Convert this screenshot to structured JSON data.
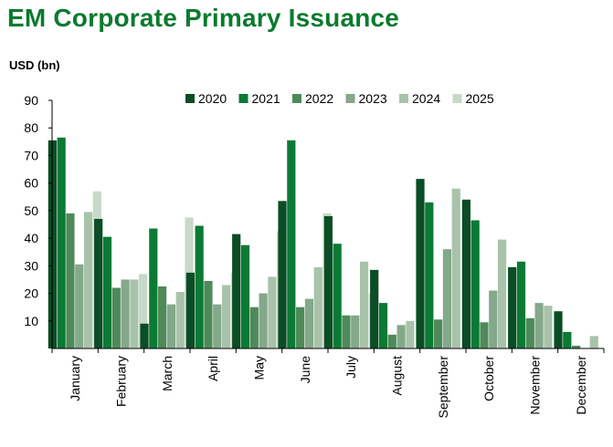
{
  "chart_data": {
    "type": "bar",
    "title": "EM Corporate Primary Issuance",
    "ylabel": "USD (bn)",
    "xlabel": "",
    "ylim": [
      0,
      90
    ],
    "yticks": [
      10,
      20,
      30,
      40,
      50,
      60,
      70,
      80,
      90
    ],
    "grid": false,
    "legend_position": "top",
    "categories": [
      "January",
      "February",
      "March",
      "April",
      "May",
      "June",
      "July",
      "August",
      "September",
      "October",
      "November",
      "December"
    ],
    "series": [
      {
        "name": "2020",
        "color": "#0b4d24",
        "values": [
          75.5,
          47,
          9,
          27.5,
          41.5,
          53.5,
          48,
          28.5,
          61.5,
          54,
          29.5,
          13.5
        ]
      },
      {
        "name": "2021",
        "color": "#0a7a34",
        "values": [
          76.5,
          40.5,
          43.5,
          44.5,
          37.5,
          75.5,
          38,
          16.5,
          53,
          46.5,
          31.5,
          6
        ]
      },
      {
        "name": "2022",
        "color": "#4e8a59",
        "values": [
          49,
          22,
          22.5,
          24.5,
          15,
          15,
          12,
          5,
          10.5,
          9.5,
          11,
          1
        ]
      },
      {
        "name": "2023",
        "color": "#84a88a",
        "values": [
          30.5,
          25,
          16,
          16,
          20,
          18,
          12,
          8.5,
          36,
          21,
          16.5,
          0
        ]
      },
      {
        "name": "2024",
        "color": "#a9c3ab",
        "values": [
          49.5,
          25,
          20.5,
          23,
          26,
          29.5,
          31.5,
          10,
          58,
          39.5,
          15.5,
          4.5
        ]
      },
      {
        "name": "2025",
        "color": "#c7d9c8",
        "values": [
          57,
          27,
          47.5,
          27.5,
          42.5,
          49,
          20,
          0,
          0,
          0,
          0,
          0
        ]
      }
    ]
  }
}
